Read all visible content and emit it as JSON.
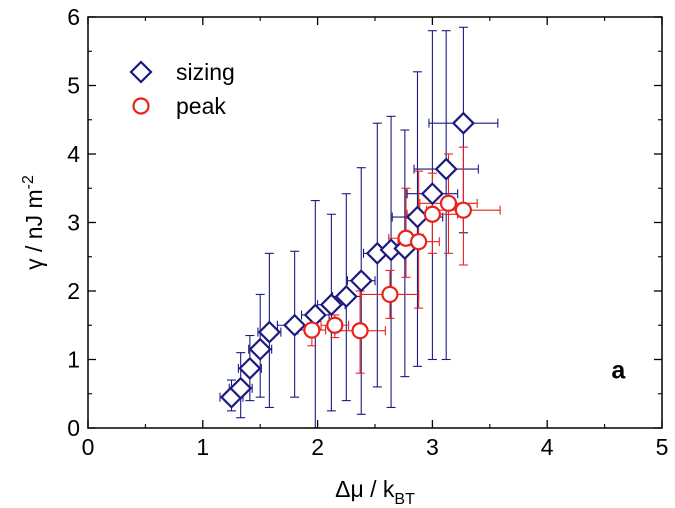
{
  "chart_data": {
    "type": "scatter",
    "xlabel": "Δμ / k_BT",
    "ylabel": "γ / nJ m^-2",
    "xlim": [
      0,
      5
    ],
    "ylim": [
      0,
      6
    ],
    "xticks": [
      "0",
      "1",
      "2",
      "3",
      "4",
      "5"
    ],
    "yticks": [
      "0",
      "1",
      "2",
      "3",
      "4",
      "5",
      "6"
    ],
    "grid": false,
    "legend_position": "top-left",
    "panel_label": "a",
    "series": [
      {
        "name": "sizing",
        "marker": "diamond",
        "color": "#1a1a80",
        "points": [
          {
            "x": 1.25,
            "y": 0.45,
            "xerr": 0.1,
            "ylo": 0.25,
            "yhi": 0.7
          },
          {
            "x": 1.33,
            "y": 0.58,
            "xerr": 0.1,
            "ylo": 0.15,
            "yhi": 1.1
          },
          {
            "x": 1.41,
            "y": 0.87,
            "xerr": 0.1,
            "ylo": 0.4,
            "yhi": 1.35
          },
          {
            "x": 1.5,
            "y": 1.15,
            "xerr": 0.1,
            "ylo": 0.45,
            "yhi": 1.95
          },
          {
            "x": 1.58,
            "y": 1.4,
            "xerr": 0.1,
            "ylo": 0.3,
            "yhi": 2.55
          },
          {
            "x": 1.8,
            "y": 1.5,
            "xerr": 0.15,
            "ylo": 0.45,
            "yhi": 2.58
          },
          {
            "x": 1.98,
            "y": 1.65,
            "xerr": 0.12,
            "ylo": 0.0,
            "yhi": 3.32
          },
          {
            "x": 2.12,
            "y": 1.8,
            "xerr": 0.12,
            "ylo": 0.25,
            "yhi": 3.12
          },
          {
            "x": 2.25,
            "y": 1.92,
            "xerr": 0.12,
            "ylo": 0.4,
            "yhi": 3.42
          },
          {
            "x": 2.38,
            "y": 2.15,
            "xerr": 0.12,
            "ylo": 0.2,
            "yhi": 3.8
          },
          {
            "x": 2.52,
            "y": 2.55,
            "xerr": 0.12,
            "ylo": 0.6,
            "yhi": 4.45
          },
          {
            "x": 2.64,
            "y": 2.6,
            "xerr": 0.12,
            "ylo": 0.3,
            "yhi": 4.55
          },
          {
            "x": 2.76,
            "y": 2.62,
            "xerr": 0.12,
            "ylo": 0.75,
            "yhi": 4.35
          },
          {
            "x": 2.87,
            "y": 3.08,
            "xerr": 0.22,
            "ylo": 0.9,
            "yhi": 5.2
          },
          {
            "x": 3.0,
            "y": 3.42,
            "xerr": 0.22,
            "ylo": 1.0,
            "yhi": 5.8
          },
          {
            "x": 3.12,
            "y": 3.78,
            "xerr": 0.28,
            "ylo": 1.0,
            "yhi": 5.8
          },
          {
            "x": 3.27,
            "y": 4.45,
            "xerr": 0.3,
            "ylo": 2.85,
            "yhi": 5.85
          }
        ]
      },
      {
        "name": "peak",
        "marker": "circle",
        "color": "#e8231c",
        "points": [
          {
            "x": 1.95,
            "y": 1.43,
            "xerr": 0.12,
            "ylo": 1.2,
            "yhi": 1.6
          },
          {
            "x": 2.15,
            "y": 1.5,
            "xerr": 0.12,
            "ylo": 1.32,
            "yhi": 1.65
          },
          {
            "x": 2.37,
            "y": 1.42,
            "xerr": 0.22,
            "ylo": 0.8,
            "yhi": 2.0
          },
          {
            "x": 2.63,
            "y": 1.95,
            "xerr": 0.25,
            "ylo": 1.6,
            "yhi": 2.3
          },
          {
            "x": 2.77,
            "y": 2.77,
            "xerr": 0.15,
            "ylo": 2.2,
            "yhi": 3.5
          },
          {
            "x": 2.88,
            "y": 2.72,
            "xerr": 0.18,
            "ylo": 1.75,
            "yhi": 3.75
          },
          {
            "x": 3.0,
            "y": 3.12,
            "xerr": 0.22,
            "ylo": 2.55,
            "yhi": 3.72
          },
          {
            "x": 3.14,
            "y": 3.28,
            "xerr": 0.25,
            "ylo": 2.55,
            "yhi": 4.0
          },
          {
            "x": 3.27,
            "y": 3.18,
            "xerr": 0.32,
            "ylo": 2.38,
            "yhi": 4.1
          }
        ]
      }
    ]
  }
}
